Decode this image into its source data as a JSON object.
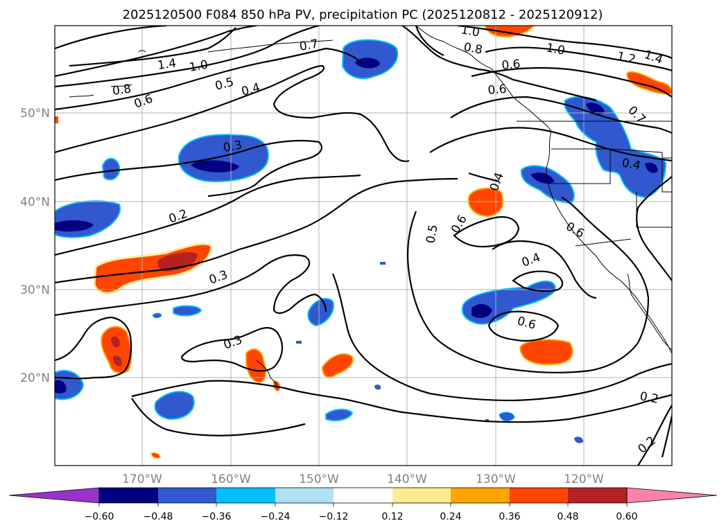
{
  "title": "2025120500 F084 850 hPa PV, precipitation PC (2025120812 - 2025120912)",
  "lat_labels": [
    "50°N",
    "40°N",
    "30°N",
    "20°N"
  ],
  "lon_labels": [
    "170°W",
    "160°W",
    "150°W",
    "140°W",
    "130°W",
    "120°W"
  ],
  "colorbar": {
    "ticks": [
      "−0.60",
      "−0.48",
      "−0.36",
      "−0.24",
      "−0.12",
      "0.12",
      "0.24",
      "0.36",
      "0.48",
      "0.60"
    ],
    "colors": [
      "#9932cc",
      "#000080",
      "#3158cf",
      "#00bfff",
      "#b0e0f6",
      "#ffffff",
      "#ffea94",
      "#ffa500",
      "#ff4500",
      "#b22222",
      "#ff82ab"
    ]
  },
  "contour_labels": [
    {
      "text": "1.4"
    },
    {
      "text": "1.0"
    },
    {
      "text": "0.8"
    },
    {
      "text": "0.6"
    },
    {
      "text": "0.5"
    },
    {
      "text": "0.4"
    },
    {
      "text": "0.3"
    },
    {
      "text": "0.2"
    },
    {
      "text": "0.3"
    },
    {
      "text": "0.3"
    },
    {
      "text": "1.0"
    },
    {
      "text": "0.8"
    },
    {
      "text": "0.6"
    },
    {
      "text": "0.6"
    },
    {
      "text": "1.0"
    },
    {
      "text": "1.2"
    },
    {
      "text": "1.4"
    },
    {
      "text": "0.7"
    },
    {
      "text": "0.4"
    },
    {
      "text": "0.4"
    },
    {
      "text": "0.5"
    },
    {
      "text": "0.6"
    },
    {
      "text": "0.6"
    },
    {
      "text": "0.4"
    },
    {
      "text": "0.6"
    },
    {
      "text": "0.2"
    },
    {
      "text": "0.2"
    },
    {
      "text": "0.7"
    }
  ]
}
